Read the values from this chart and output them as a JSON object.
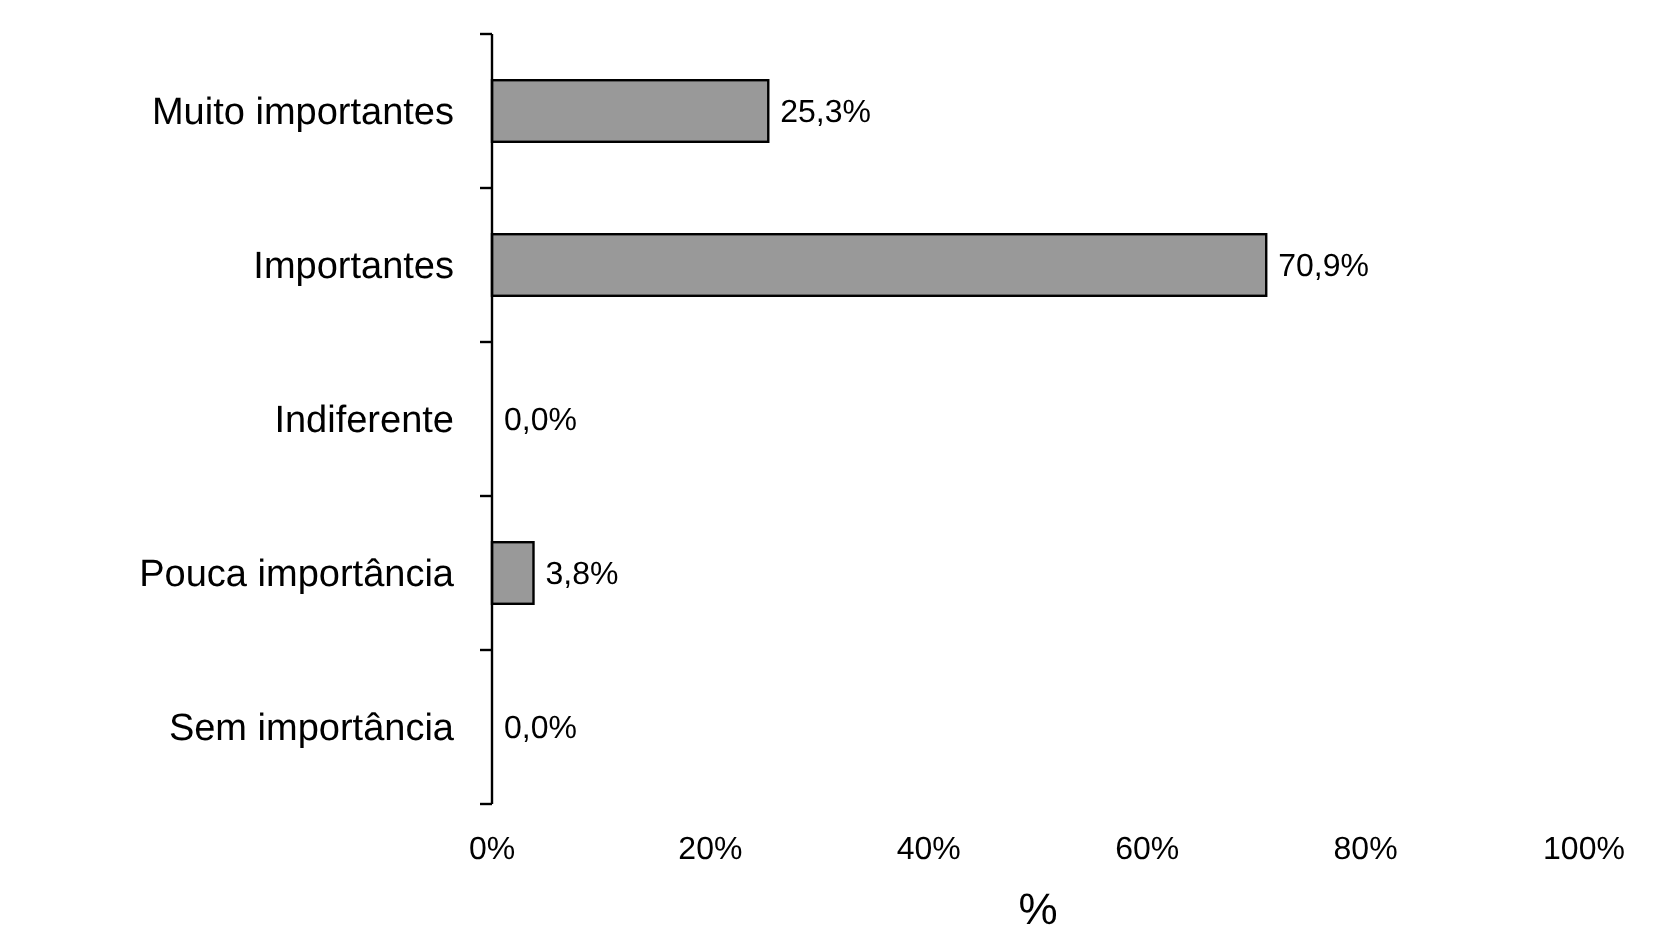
{
  "chart_data": {
    "type": "bar",
    "orientation": "horizontal",
    "xlabel": "%",
    "categories": [
      "Muito importantes",
      "Importantes",
      "Indiferente",
      "Pouca importância",
      "Sem importância"
    ],
    "values": [
      25.3,
      70.9,
      0,
      3.8,
      0
    ],
    "value_labels": [
      "25,3%",
      "70,9%",
      "0,0%",
      "3,8%",
      "0,0%"
    ],
    "color": "#999999",
    "xlim": [
      0,
      100
    ],
    "xticks": [
      {
        "value": 0,
        "label": "0%"
      },
      {
        "value": 20,
        "label": "20%"
      },
      {
        "value": 40,
        "label": "40%"
      },
      {
        "value": 60,
        "label": "60%"
      },
      {
        "value": 80,
        "label": "80%"
      },
      {
        "value": 100,
        "label": "100%"
      }
    ],
    "grid": false
  }
}
